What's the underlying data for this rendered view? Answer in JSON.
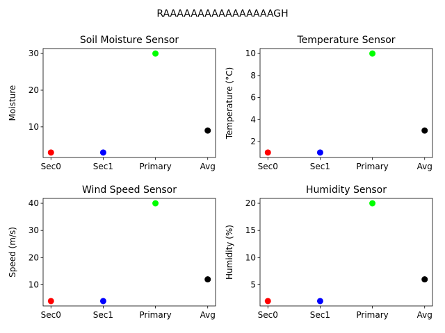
{
  "figure": {
    "suptitle": "RAAAAAAAAAAAAAAAAGH"
  },
  "chart_data": [
    {
      "type": "scatter",
      "title": "Soil Moisture Sensor",
      "xlabel": "",
      "ylabel": "Moisture",
      "categories": [
        "Sec0",
        "Sec1",
        "Primary",
        "Avg"
      ],
      "values": [
        3,
        3,
        30,
        9
      ],
      "colors": [
        "#ff0000",
        "#0000ff",
        "#00ff00",
        "#000000"
      ],
      "ylim": [
        1.65,
        31.35
      ],
      "yticks": [
        10,
        20,
        30
      ]
    },
    {
      "type": "scatter",
      "title": "Temperature Sensor",
      "xlabel": "",
      "ylabel": "Temperature (°C)",
      "categories": [
        "Sec0",
        "Sec1",
        "Primary",
        "Avg"
      ],
      "values": [
        1,
        1,
        10,
        3
      ],
      "colors": [
        "#ff0000",
        "#0000ff",
        "#00ff00",
        "#000000"
      ],
      "ylim": [
        0.55,
        10.45
      ],
      "yticks": [
        2,
        4,
        6,
        8,
        10
      ]
    },
    {
      "type": "scatter",
      "title": "Wind Speed Sensor",
      "xlabel": "",
      "ylabel": "Speed (m/s)",
      "categories": [
        "Sec0",
        "Sec1",
        "Primary",
        "Avg"
      ],
      "values": [
        4,
        4,
        40,
        12
      ],
      "colors": [
        "#ff0000",
        "#0000ff",
        "#00ff00",
        "#000000"
      ],
      "ylim": [
        2.2,
        41.8
      ],
      "yticks": [
        10,
        20,
        30,
        40
      ]
    },
    {
      "type": "scatter",
      "title": "Humidity Sensor",
      "xlabel": "",
      "ylabel": "Humidity (%)",
      "categories": [
        "Sec0",
        "Sec1",
        "Primary",
        "Avg"
      ],
      "values": [
        2,
        2,
        20,
        6
      ],
      "colors": [
        "#ff0000",
        "#0000ff",
        "#00ff00",
        "#000000"
      ],
      "ylim": [
        1.1,
        20.9
      ],
      "yticks": [
        5,
        10,
        15,
        20
      ]
    }
  ]
}
